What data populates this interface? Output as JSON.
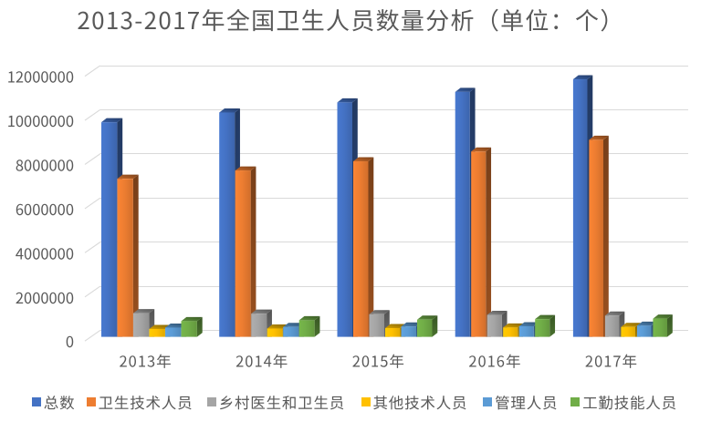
{
  "chart_data": {
    "type": "bar",
    "variant": "3d-clustered-column",
    "title": "2013-2017年全国卫生人员数量分析（单位：个）",
    "categories": [
      "2013年",
      "2014年",
      "2015年",
      "2016年",
      "2017年"
    ],
    "series": [
      {
        "name": "总数",
        "color": "#4472C4",
        "values": [
          9790483,
          10234213,
          10693881,
          11172945,
          11748972
        ]
      },
      {
        "name": "卫生技术人员",
        "color": "#ED7D31",
        "values": [
          7210578,
          7589790,
          8007537,
          8454403,
          8988230
        ]
      },
      {
        "name": "乡村医生和卫生员",
        "color": "#A5A5A5",
        "values": [
          1081063,
          1058182,
          1031525,
          1000324,
          968611
        ]
      },
      {
        "name": "其他技术人员",
        "color": "#FFC000",
        "values": [
          359819,
          377568,
          399712,
          426171,
          451090
        ]
      },
      {
        "name": "管理人员",
        "color": "#5B9BD5",
        "values": [
          420971,
          451253,
          472620,
          482993,
          509361
        ]
      },
      {
        "name": "工勤技能人员",
        "color": "#70AD47",
        "values": [
          718052,
          757420,
          782487,
          809054,
          831680
        ]
      }
    ],
    "xlabel": "",
    "ylabel": "",
    "ylim": [
      0,
      12000000
    ],
    "ytick_step": 2000000,
    "yticks": [
      "0",
      "2000000",
      "4000000",
      "6000000",
      "8000000",
      "10000000",
      "12000000"
    ],
    "grid": true,
    "legend_position": "bottom"
  },
  "colors": {
    "background": "#FFFFFF",
    "text": "#595959",
    "gridline": "#D9D9D9"
  }
}
